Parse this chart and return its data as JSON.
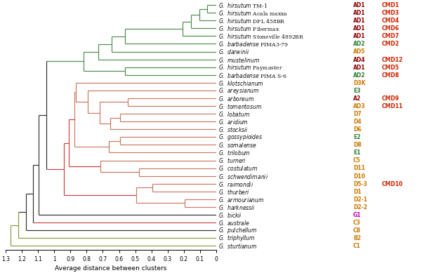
{
  "species": [
    {
      "genus": "G.",
      "sp": "hirsutum",
      "cv": "TM-1"
    },
    {
      "genus": "G.",
      "sp": "hirsutum",
      "cv": "Acala maxxa"
    },
    {
      "genus": "G.",
      "sp": "hirsutum",
      "cv": "DPL 458BR"
    },
    {
      "genus": "G.",
      "sp": "hirsutum",
      "cv": "Fibermax"
    },
    {
      "genus": "G.",
      "sp": "hirsutum",
      "cv": "Stoneville 4892BR"
    },
    {
      "genus": "G.",
      "sp": "barbadense",
      "cv": "PIMA3-79"
    },
    {
      "genus": "G.",
      "sp": "darwinii",
      "cv": ""
    },
    {
      "genus": "G.",
      "sp": "mustelinum",
      "cv": ""
    },
    {
      "genus": "G.",
      "sp": "hirsutum",
      "cv": "Paymaster"
    },
    {
      "genus": "G.",
      "sp": "barbadense",
      "cv": "PIMA S-6"
    },
    {
      "genus": "G.",
      "sp": "klotschianum",
      "cv": ""
    },
    {
      "genus": "G.",
      "sp": "areysianum",
      "cv": ""
    },
    {
      "genus": "G.",
      "sp": "arboreum",
      "cv": ""
    },
    {
      "genus": "G.",
      "sp": "tomentosum",
      "cv": ""
    },
    {
      "genus": "G.",
      "sp": "lobatum",
      "cv": ""
    },
    {
      "genus": "G.",
      "sp": "aridium",
      "cv": ""
    },
    {
      "genus": "G.",
      "sp": "stocksii",
      "cv": ""
    },
    {
      "genus": "G.",
      "sp": "gossypioides",
      "cv": ""
    },
    {
      "genus": "G.",
      "sp": "somalense",
      "cv": ""
    },
    {
      "genus": "G.",
      "sp": "trilobum",
      "cv": ""
    },
    {
      "genus": "G.",
      "sp": "turneri",
      "cv": ""
    },
    {
      "genus": "G.",
      "sp": "costulatum",
      "cv": ""
    },
    {
      "genus": "G.",
      "sp": "schwendimanii",
      "cv": ""
    },
    {
      "genus": "G.",
      "sp": "raimondii",
      "cv": ""
    },
    {
      "genus": "G.",
      "sp": "thurberi",
      "cv": ""
    },
    {
      "genus": "G.",
      "sp": "armourianum",
      "cv": ""
    },
    {
      "genus": "G.",
      "sp": "harknessii",
      "cv": ""
    },
    {
      "genus": "G.",
      "sp": "bickii",
      "cv": ""
    },
    {
      "genus": "G.",
      "sp": "australe",
      "cv": ""
    },
    {
      "genus": "G.",
      "sp": "pulchellum",
      "cv": ""
    },
    {
      "genus": "G.",
      "sp": "triphyllum",
      "cv": ""
    },
    {
      "genus": "G.",
      "sp": "sturtianum",
      "cv": ""
    }
  ],
  "genome_labels": [
    "AD1",
    "AD1",
    "AD1",
    "AD1",
    "AD1",
    "AD2",
    "AD5",
    "AD4",
    "AD1",
    "AD2",
    "D3K",
    "E3",
    "A2",
    "AD3",
    "D7",
    "D4",
    "D6",
    "E2",
    "D8",
    "E1",
    "C5",
    "D11",
    "D10",
    "D5-3",
    "D1",
    "D2-1",
    "D2-2",
    "G1",
    "C3",
    "C8",
    "B2",
    "C1"
  ],
  "genome_colors": [
    "#8B0000",
    "#8B0000",
    "#8B0000",
    "#8B0000",
    "#8B0000",
    "#2E7D32",
    "#CC7700",
    "#8B0000",
    "#8B0000",
    "#2E7D32",
    "#CC7700",
    "#2E7D32",
    "#8B0000",
    "#CC7700",
    "#CC7700",
    "#CC7700",
    "#CC7700",
    "#2E7D32",
    "#CC7700",
    "#2E7D32",
    "#CC7700",
    "#CC7700",
    "#CC7700",
    "#CC7700",
    "#CC7700",
    "#CC7700",
    "#CC7700",
    "#CC00AA",
    "#CC7700",
    "#CC7700",
    "#CC7700",
    "#CC7700"
  ],
  "cmd_labels": [
    "CMD1",
    "CMD3",
    "CMD4",
    "CMD6",
    "CMD7",
    "CMD2",
    "",
    "CMD12",
    "CMD5",
    "CMD8",
    "",
    "",
    "CMD9",
    "CMD11",
    "",
    "",
    "",
    "",
    "",
    "",
    "",
    "",
    "",
    "CMD10",
    "",
    "",
    "",
    "",
    "",
    "",
    "",
    ""
  ],
  "cmd_color": "#CC2200",
  "xlim_left": 1.3,
  "xlim_right": 0.0,
  "xlabel": "Average distance between clusters",
  "GREEN": "#4E8B4E",
  "SALMON": "#C87860",
  "RED": "#CC4040",
  "BLACK": "#303030",
  "OLIVE": "#8B9940",
  "fig_w": 6.0,
  "fig_h": 3.98
}
